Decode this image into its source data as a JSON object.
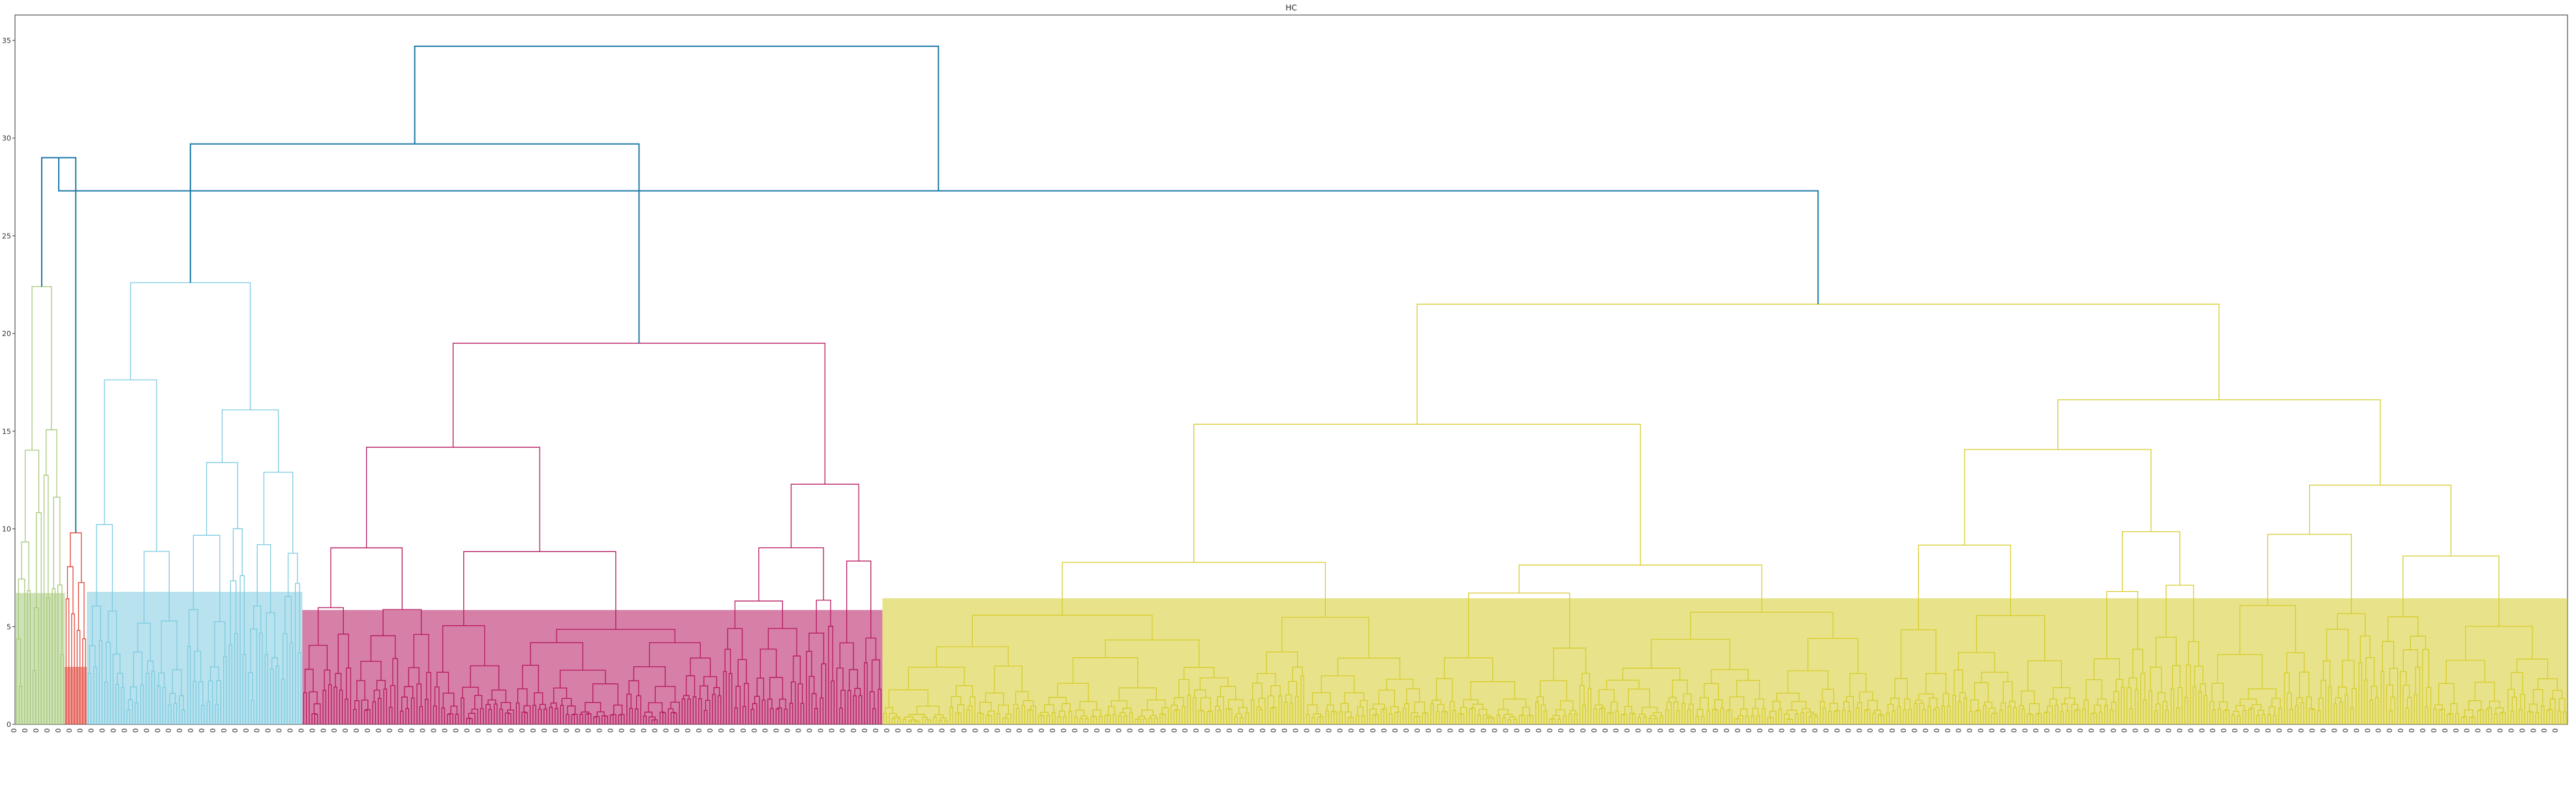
{
  "chart_data": {
    "type": "dendrogram",
    "title": "HC",
    "xlabel": "",
    "ylabel": "",
    "ylim": [
      0,
      36.3
    ],
    "yticks": [
      0,
      5,
      10,
      15,
      20,
      25,
      30,
      35
    ],
    "grid": false,
    "legend": "none",
    "colors": {
      "green": "#a6c97a",
      "red": "#e0473a",
      "lightblue": "#7dcbe0",
      "magenta": "#b5175e",
      "yellow": "#d6cc2a",
      "top": "#1f7aa8"
    },
    "clusters": [
      {
        "color": "green",
        "leaves": 18,
        "height": 22.4
      },
      {
        "color": "red",
        "leaves": 8,
        "height": 9.8
      },
      {
        "color": "lightblue",
        "leaves": 78,
        "height": 22.6
      },
      {
        "color": "magenta",
        "leaves": 210,
        "height": 19.5
      },
      {
        "color": "yellow",
        "leaves": 610,
        "height": 21.5
      }
    ],
    "merges": [
      {
        "left": 0,
        "right": 1,
        "height": 29.0
      },
      {
        "left": 2,
        "right": 3,
        "height": 29.7
      },
      {
        "left": 5,
        "right": 4,
        "height": 27.3
      },
      {
        "left": 6,
        "right": 7,
        "height": 34.7
      }
    ],
    "leaf_label_text": "0"
  }
}
